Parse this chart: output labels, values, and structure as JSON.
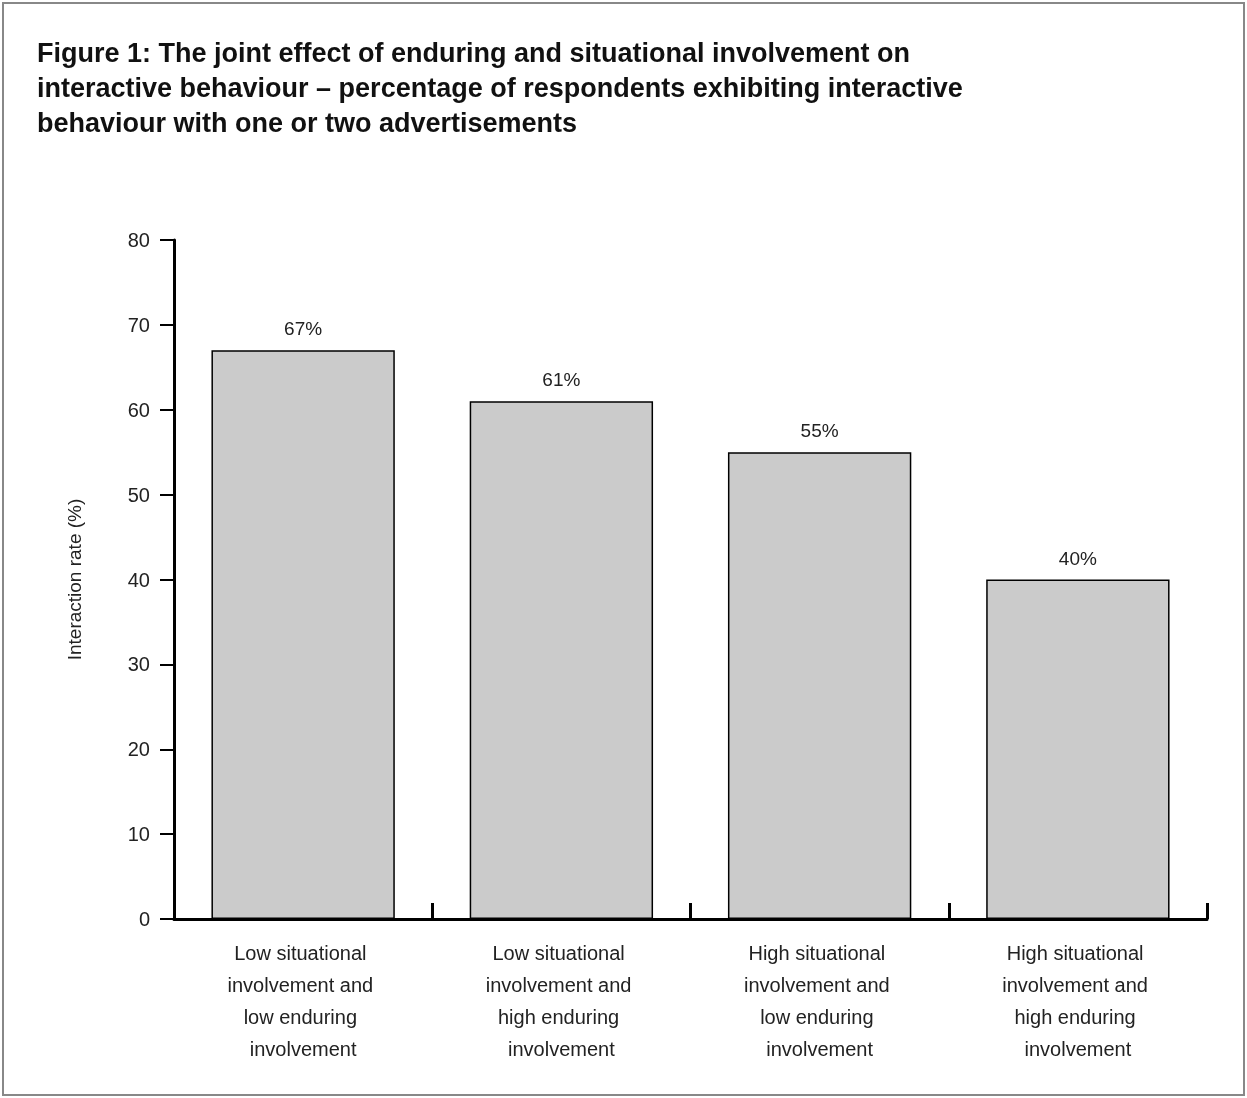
{
  "chart_data": {
    "type": "bar",
    "title": "Figure 1: The joint effect of enduring and situational involvement on interactive behaviour – percentage of respondents exhibiting interactive behaviour with one or two advertisements",
    "ylabel": "Interaction rate (%)",
    "categories": [
      "Low situational involvement and low enduring involvement",
      "Low situational involvement and high enduring involvement",
      "High situational involvement and low enduring involvement",
      "High situational involvement and high enduring involvement"
    ],
    "values": [
      67,
      61,
      55,
      40
    ],
    "value_labels": [
      "67%",
      "61%",
      "55%",
      "40%"
    ],
    "color": "#cbcbcb",
    "ylim": [
      0,
      80
    ],
    "yticks": [
      0,
      10,
      20,
      30,
      40,
      50,
      60,
      70,
      80
    ],
    "grid": false
  }
}
